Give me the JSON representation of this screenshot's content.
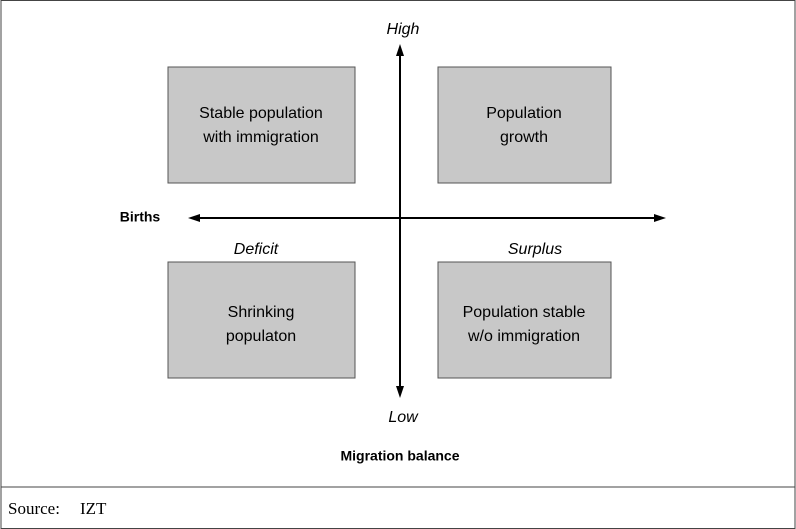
{
  "axes": {
    "vertical_high": "High",
    "vertical_low": "Low",
    "horizontal": "Births",
    "horizontal_left": "Deficit",
    "horizontal_right": "Surplus",
    "vertical": "Migration balance"
  },
  "quadrants": [
    {
      "lines": [
        "Stable population",
        "with immigration"
      ]
    },
    {
      "lines": [
        "Population",
        "growth"
      ]
    },
    {
      "lines": [
        "Shrinking",
        "populaton"
      ]
    },
    {
      "lines": [
        "Population stable",
        "w/o immigration"
      ]
    }
  ],
  "source": {
    "label": "Source:",
    "value": "IZT"
  }
}
